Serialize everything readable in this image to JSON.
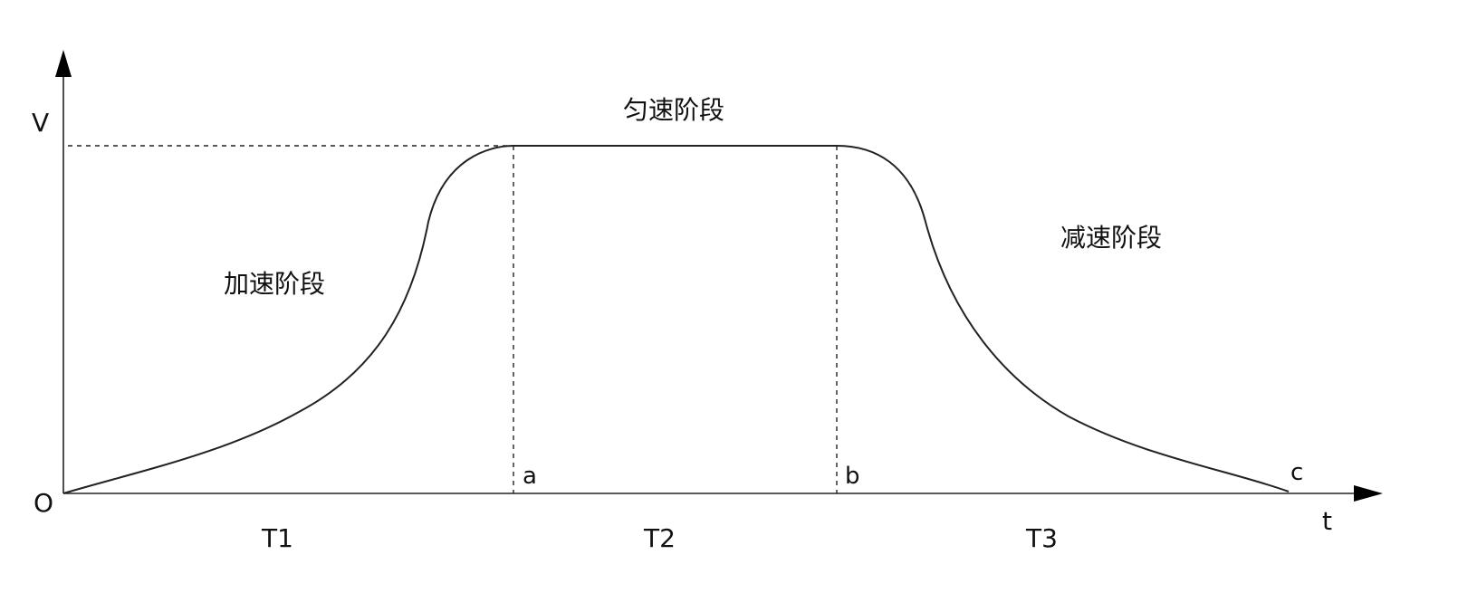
{
  "axes": {
    "y_label": "V",
    "x_label": "t",
    "origin_label": "O"
  },
  "points": {
    "a": "a",
    "b": "b",
    "c": "c"
  },
  "intervals": {
    "t1": "T1",
    "t2": "T2",
    "t3": "T3"
  },
  "phases": {
    "acceleration": "加速阶段",
    "constant": "匀速阶段",
    "deceleration": "减速阶段"
  }
}
